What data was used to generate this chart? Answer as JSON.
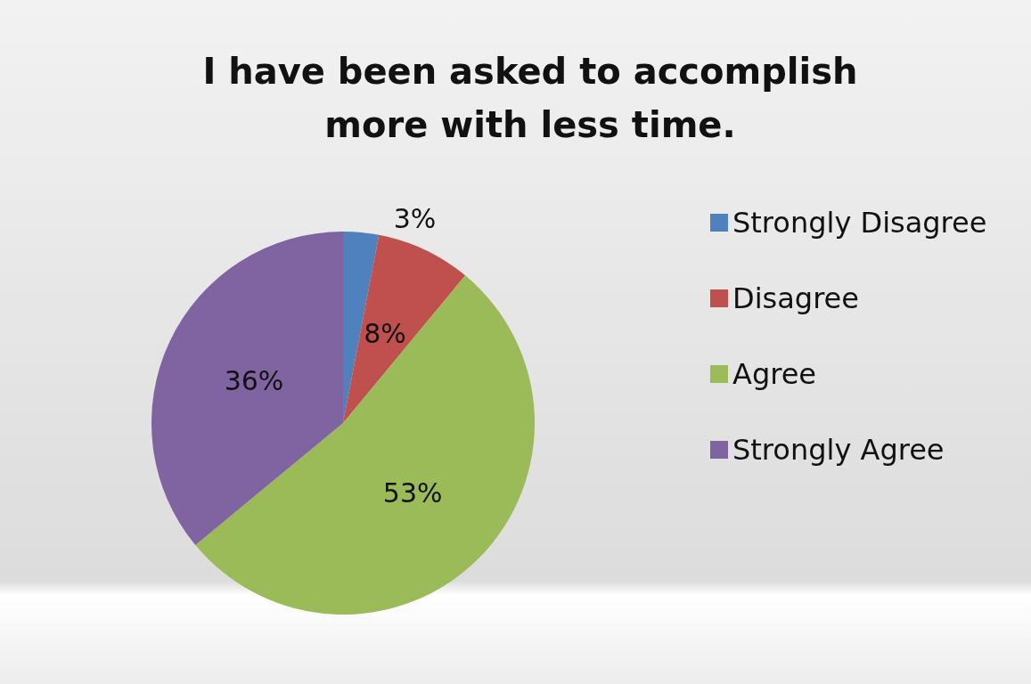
{
  "chart_data": {
    "type": "pie",
    "title": "I have been asked to accomplish\nmore with less time.",
    "categories": [
      "Strongly Disagree",
      "Disagree",
      "Agree",
      "Strongly Agree"
    ],
    "values": [
      3,
      8,
      53,
      36
    ],
    "colors": [
      "#4f81bd",
      "#c0504d",
      "#9bbb59",
      "#8064a2"
    ],
    "value_labels": [
      "3%",
      "8%",
      "53%",
      "36%"
    ],
    "legend": "right"
  }
}
